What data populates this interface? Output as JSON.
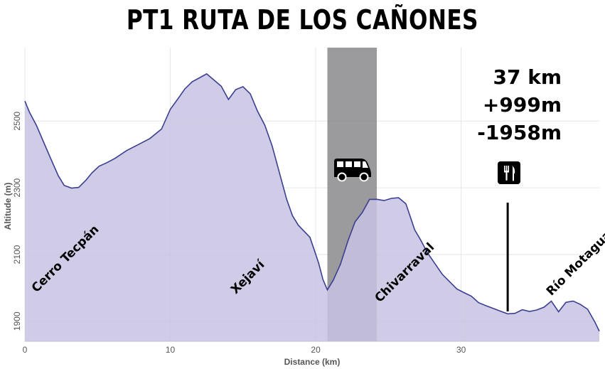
{
  "title": "PT1 RUTA DE LOS CAÑONES",
  "stats": {
    "distance": "37 km",
    "ascent": "+999m",
    "descent": "-1958m"
  },
  "icons": {
    "transport": "van-icon",
    "food": "restaurant-icon"
  },
  "colors": {
    "fill": "#c8c3e3",
    "line": "#3b3f8f",
    "band": "#8a8a8c"
  },
  "chart_data": {
    "type": "area",
    "xlabel": "Distance (km)",
    "ylabel": "Altitude (m)",
    "xlim": [
      0,
      39.5
    ],
    "ylim": [
      1840,
      2720
    ],
    "xticks": [
      0,
      10,
      20,
      30
    ],
    "yticks": [
      1900,
      2100,
      2300,
      2500
    ],
    "grid": true,
    "shaded_region": [
      20.8,
      24.2
    ],
    "marker_x": 33.2,
    "series": [
      {
        "x": [
          0,
          0.3,
          0.8,
          1.3,
          1.8,
          2.3,
          2.7,
          3.2,
          3.7,
          4.2,
          4.6,
          5.1,
          5.6,
          6.2,
          7.0,
          7.8,
          8.6,
          9.4,
          10.0,
          10.5,
          11.0,
          11.5,
          12.0,
          12.5,
          13.0,
          13.5,
          14.0,
          14.5,
          15.0,
          15.5,
          16.0,
          16.5,
          17.0,
          17.5,
          18.0,
          18.4,
          18.8,
          19.2,
          19.6,
          19.9,
          20.2,
          20.5,
          20.8,
          21.2,
          21.7,
          22.2,
          22.7,
          23.2,
          23.7,
          24.2,
          24.7,
          25.2,
          25.7,
          26.2,
          26.5,
          26.8,
          27.2,
          27.7,
          28.2,
          28.7,
          29.2,
          29.7,
          30.2,
          30.7,
          31.2,
          31.7,
          32.2,
          32.7,
          33.2,
          33.7,
          34.2,
          34.7,
          35.2,
          35.7,
          36.2,
          36.7,
          37.2,
          37.7,
          38.2,
          38.7,
          39.2,
          39.5
        ],
        "y": [
          2560,
          2530,
          2490,
          2440,
          2390,
          2340,
          2310,
          2300,
          2300,
          2320,
          2340,
          2360,
          2370,
          2385,
          2410,
          2430,
          2450,
          2480,
          2540,
          2570,
          2600,
          2620,
          2630,
          2640,
          2620,
          2600,
          2560,
          2590,
          2600,
          2580,
          2530,
          2490,
          2430,
          2350,
          2270,
          2220,
          2190,
          2170,
          2150,
          2110,
          2070,
          2020,
          1990,
          2020,
          2070,
          2140,
          2200,
          2230,
          2270,
          2270,
          2265,
          2270,
          2270,
          2250,
          2210,
          2170,
          2140,
          2100,
          2070,
          2040,
          2020,
          2000,
          1990,
          1980,
          1960,
          1950,
          1940,
          1930,
          1920,
          1920,
          1930,
          1925,
          1930,
          1940,
          1960,
          1930,
          1960,
          1965,
          1955,
          1940,
          1900,
          1870
        ]
      }
    ],
    "annotations": [
      {
        "text": "Cerro Tecpán",
        "x": 0.8,
        "y": 1985
      },
      {
        "text": "Xejaví",
        "x": 14.5,
        "y": 1980
      },
      {
        "text": "Chivarraval",
        "x": 24.4,
        "y": 1955
      },
      {
        "text": "Río Motagua",
        "x": 36.2,
        "y": 1975
      }
    ]
  }
}
